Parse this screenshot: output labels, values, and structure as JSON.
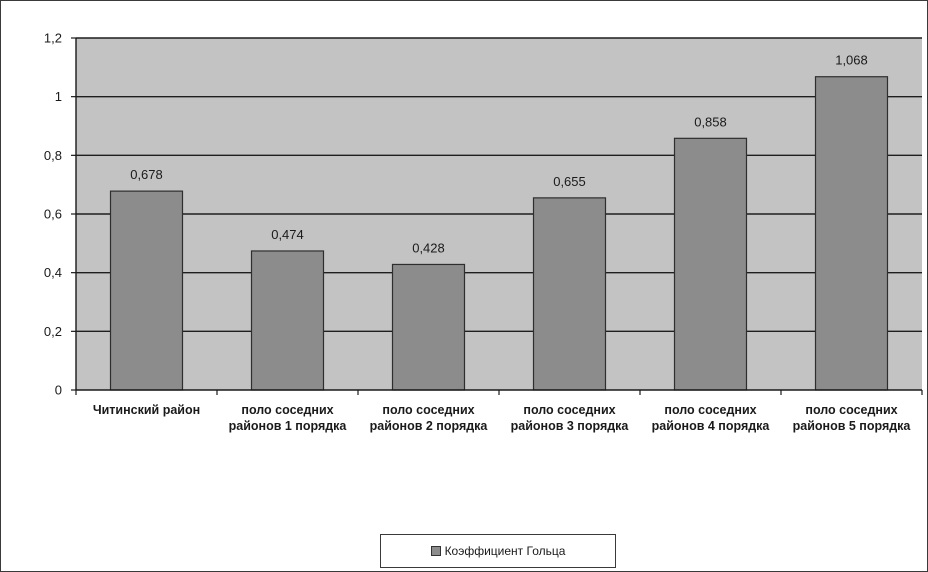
{
  "chart_data": {
    "type": "bar",
    "categories": [
      [
        "Читинский район"
      ],
      [
        "поло соседних",
        "районов 1 порядка"
      ],
      [
        "поло соседних",
        "районов 2 порядка"
      ],
      [
        "поло соседних",
        "районов 3 порядка"
      ],
      [
        "поло соседних",
        "районов 4 порядка"
      ],
      [
        "поло соседних",
        "районов 5 порядка"
      ]
    ],
    "series": [
      {
        "name": "Коэффициент Гольца",
        "values": [
          0.678,
          0.474,
          0.428,
          0.655,
          0.858,
          1.068
        ],
        "labels": [
          "0,678",
          "0,474",
          "0,428",
          "0,655",
          "0,858",
          "1,068"
        ]
      }
    ],
    "ylim": [
      0,
      1.2
    ],
    "yticks": [
      0,
      0.2,
      0.4,
      0.6,
      0.8,
      1,
      1.2
    ],
    "ytick_labels": [
      "0",
      "0,2",
      "0,4",
      "0,6",
      "0,8",
      "1",
      "1,2"
    ],
    "grid": true,
    "legend_position": "bottom",
    "colors": {
      "plot_background": "#c3c3c3",
      "bar": "#8c8c8c",
      "bar_edge": "#2e2e2e",
      "grid": "#1e1e1e"
    }
  }
}
